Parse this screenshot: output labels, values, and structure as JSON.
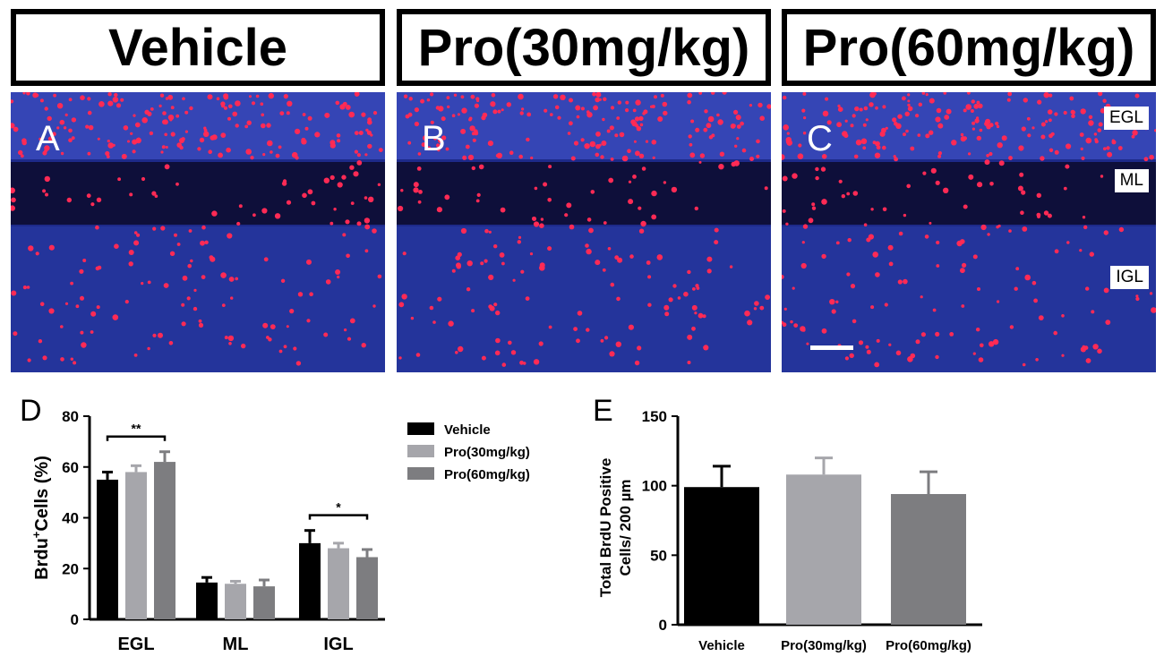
{
  "headers": [
    "Vehicle",
    "Pro(30mg/kg)",
    "Pro(60mg/kg)"
  ],
  "panel_letters": [
    "A",
    "B",
    "C",
    "D",
    "E"
  ],
  "layer_labels": [
    "EGL",
    "ML",
    "IGL"
  ],
  "colors": {
    "nucleus_blue": "#2a3ea8",
    "brdu_red": "#ff2a55",
    "vehicle": "#000000",
    "pro30": "#a6a6ab",
    "pro60": "#7d7d80"
  },
  "chart_data": [
    {
      "id": "D",
      "type": "bar",
      "categories": [
        "EGL",
        "ML",
        "IGL"
      ],
      "ylabel_main": "Brdu",
      "ylabel_sup": "+",
      "ylabel_rest": "Cells (%)",
      "ylim": [
        0,
        80
      ],
      "yticks": [
        0,
        20,
        40,
        60,
        80
      ],
      "legend_position": "right",
      "series": [
        {
          "name": "Vehicle",
          "values": [
            55,
            14.5,
            30
          ],
          "errors": [
            3,
            2,
            5
          ]
        },
        {
          "name": "Pro(30mg/kg)",
          "values": [
            58,
            14,
            28
          ],
          "errors": [
            2.5,
            1,
            2
          ]
        },
        {
          "name": "Pro(60mg/kg)",
          "values": [
            62,
            13,
            24.5
          ],
          "errors": [
            4,
            2.5,
            3
          ]
        }
      ],
      "significance": [
        {
          "category": "EGL",
          "label": "**"
        },
        {
          "category": "IGL",
          "label": "*"
        }
      ]
    },
    {
      "id": "E",
      "type": "bar",
      "categories": [
        "Vehicle",
        "Pro(30mg/kg)",
        "Pro(60mg/kg)"
      ],
      "values": [
        99,
        108,
        94
      ],
      "errors": [
        15,
        12,
        16
      ],
      "ylabel_line1": "Total BrdU Positive",
      "ylabel_line2": "Cells/ 200  µm",
      "ylim": [
        0,
        150
      ],
      "yticks": [
        0,
        50,
        100,
        150
      ]
    }
  ]
}
